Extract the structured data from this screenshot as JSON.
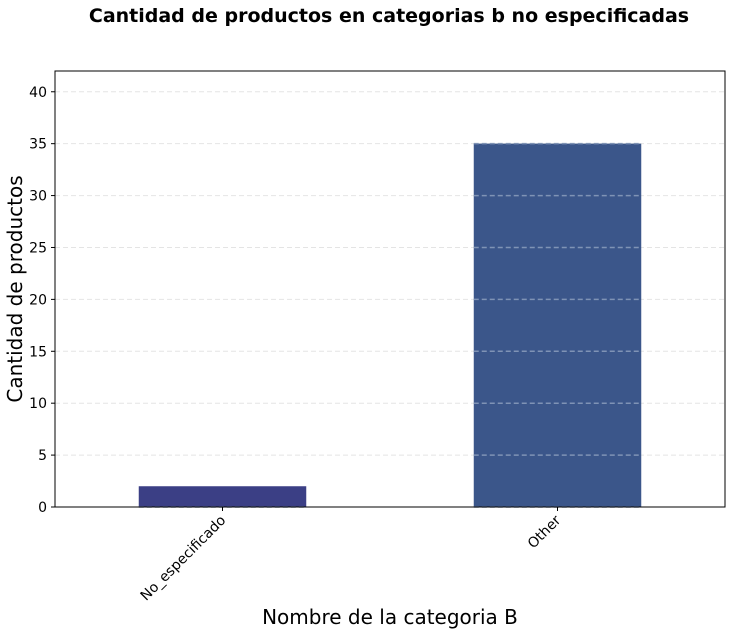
{
  "chart_data": {
    "type": "bar",
    "title": "Cantidad de productos en categorias b no especificadas",
    "xlabel": "Nombre de la categoria B",
    "ylabel": "Cantidad de productos",
    "categories": [
      "No_especificado",
      "Other"
    ],
    "values": [
      2,
      35
    ],
    "ylim": [
      0,
      42
    ],
    "yticks": [
      0,
      5,
      10,
      15,
      20,
      25,
      30,
      35,
      40
    ],
    "grid": true,
    "bar_colors": [
      "#3b3f85",
      "#3b568a"
    ],
    "grid_color": "#cfcfcf",
    "grid_color_on_bar": "#7f93b5"
  }
}
